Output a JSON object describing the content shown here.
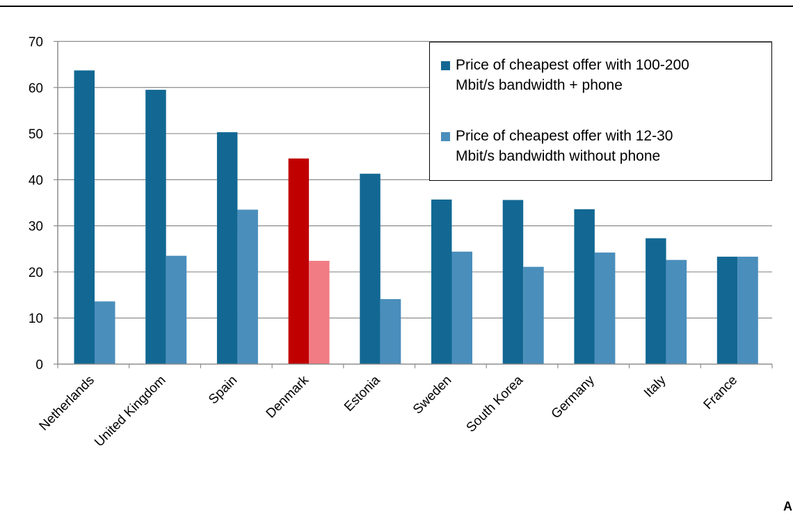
{
  "chart_data": {
    "type": "bar",
    "categories": [
      "Netherlands",
      "United Kingdom",
      "Spain",
      "Denmark",
      "Estonia",
      "Sweden",
      "South Korea",
      "Germany",
      "Italy",
      "France"
    ],
    "series": [
      {
        "name": "Price of cheapest offer with 100-200 Mbit/s bandwidth + phone",
        "values": [
          63.7,
          59.5,
          50.3,
          44.6,
          41.3,
          35.7,
          35.6,
          33.6,
          27.3,
          23.3
        ],
        "color": "#126893",
        "highlight_color": "#C00000"
      },
      {
        "name": "Price of cheapest offer with 12-30 Mbit/s bandwidth without phone",
        "values": [
          13.6,
          23.5,
          33.5,
          22.4,
          14.1,
          24.4,
          21.1,
          24.2,
          22.6,
          23.3
        ],
        "color": "#4A8EBC",
        "highlight_color": "#F27C84"
      }
    ],
    "highlight_category": "Denmark",
    "ylim": [
      0,
      70
    ],
    "yticks": [
      0,
      10,
      20,
      30,
      40,
      50,
      60,
      70
    ],
    "ytick_labels": [
      "0",
      "10",
      "20",
      "30",
      "40",
      "50",
      "60",
      "70"
    ],
    "grid": true,
    "legend_position": "top-right"
  },
  "legend": {
    "items": [
      {
        "label_line1": "Price of cheapest offer with 100-200",
        "label_line2": "Mbit/s bandwidth + phone",
        "color": "#126893"
      },
      {
        "label_line1": "Price of cheapest offer with 12-30",
        "label_line2": "Mbit/s bandwidth without phone",
        "color": "#4A8EBC"
      }
    ]
  },
  "corner_mark": "Al"
}
